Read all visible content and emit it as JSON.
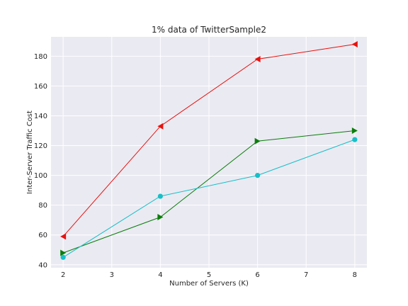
{
  "chart_data": {
    "type": "line",
    "title": "1% data of TwitterSample2",
    "xlabel": "Number of Servers (K)",
    "ylabel": "Inter-Server Traffic Cost",
    "xlim": [
      1.75,
      8.25
    ],
    "ylim": [
      38,
      193
    ],
    "xticks": [
      2,
      3,
      4,
      5,
      6,
      7,
      8
    ],
    "yticks": [
      40,
      60,
      80,
      100,
      120,
      140,
      160,
      180
    ],
    "grid": true,
    "legend": "none",
    "series": [
      {
        "name": "red",
        "color": "#e8120e",
        "marker": "triangle-left",
        "x": [
          2,
          4,
          6,
          8
        ],
        "values": [
          59,
          133,
          178,
          188
        ]
      },
      {
        "name": "green",
        "color": "#0b7d0b",
        "marker": "triangle-right",
        "x": [
          2,
          4,
          6,
          8
        ],
        "values": [
          48,
          72,
          123,
          130
        ]
      },
      {
        "name": "cyan",
        "color": "#17bfc8",
        "marker": "circle",
        "x": [
          2,
          4,
          6,
          8
        ],
        "values": [
          45,
          86,
          100,
          124
        ]
      }
    ]
  }
}
